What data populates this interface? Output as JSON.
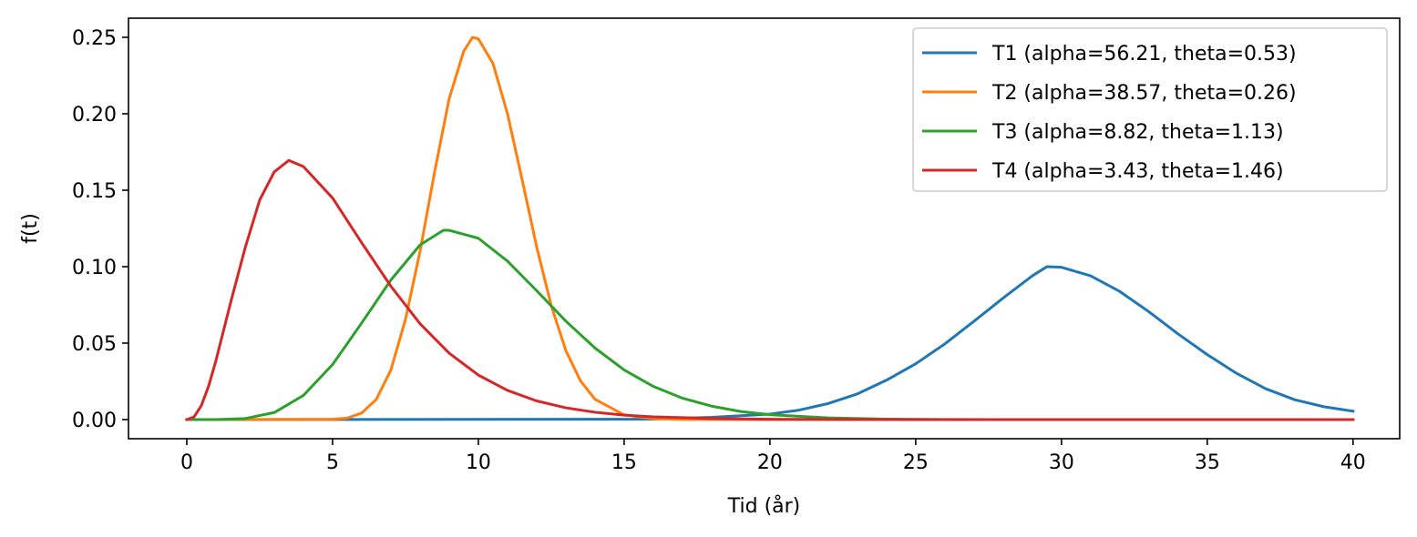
{
  "chart_data": {
    "type": "line",
    "title": "",
    "xlabel": "Tid (år)",
    "ylabel": "f(t)",
    "xlim": [
      -2,
      41.6
    ],
    "ylim": [
      -0.0125,
      0.2625
    ],
    "xticks": [
      0,
      5,
      10,
      15,
      20,
      25,
      30,
      35,
      40
    ],
    "xtick_labels": [
      "0",
      "5",
      "10",
      "15",
      "20",
      "25",
      "30",
      "35",
      "40"
    ],
    "yticks": [
      0.0,
      0.05,
      0.1,
      0.15,
      0.2,
      0.25
    ],
    "ytick_labels": [
      "0.00",
      "0.05",
      "0.10",
      "0.15",
      "0.20",
      "0.25"
    ],
    "grid": false,
    "legend_position": "top-right",
    "x_range": [
      0,
      40
    ],
    "series": [
      {
        "name": "T1 (alpha=56.21, theta=0.53)",
        "color": "#1f77b4",
        "x": [
          0,
          16,
          18,
          20,
          21,
          22,
          23,
          24,
          25,
          26,
          27,
          28,
          29,
          29.5,
          30,
          31,
          32,
          33,
          34,
          35,
          36,
          37,
          38,
          39,
          40
        ],
        "y": [
          0.0,
          0.0003,
          0.0015,
          0.0036,
          0.0062,
          0.0105,
          0.0168,
          0.0258,
          0.0365,
          0.0495,
          0.0643,
          0.0795,
          0.094,
          0.1,
          0.0996,
          0.094,
          0.0838,
          0.0705,
          0.056,
          0.0425,
          0.0303,
          0.0202,
          0.013,
          0.0084,
          0.0055
        ]
      },
      {
        "name": "T2 (alpha=38.57, theta=0.26)",
        "color": "#ff7f0e",
        "x": [
          0,
          5,
          5.5,
          6,
          6.5,
          7,
          7.5,
          8,
          8.5,
          9,
          9.5,
          9.8,
          10,
          10.5,
          11,
          11.5,
          12,
          12.5,
          13,
          13.5,
          14,
          15,
          16,
          17,
          20,
          40
        ],
        "y": [
          0.0,
          0.0002,
          0.001,
          0.0043,
          0.0132,
          0.0325,
          0.0655,
          0.11,
          0.162,
          0.21,
          0.241,
          0.25,
          0.249,
          0.233,
          0.2,
          0.157,
          0.113,
          0.0745,
          0.0452,
          0.0254,
          0.0133,
          0.0031,
          0.0006,
          0.0001,
          0.0,
          0.0
        ]
      },
      {
        "name": "T3 (alpha=8.82, theta=1.13)",
        "color": "#2ca02c",
        "x": [
          0,
          1,
          2,
          3,
          4,
          5,
          6,
          7,
          8,
          8.8,
          9,
          10,
          11,
          12,
          13,
          14,
          15,
          16,
          17,
          18,
          19,
          20,
          22,
          24,
          26,
          28,
          30,
          34,
          40
        ],
        "y": [
          0.0,
          0.0,
          0.0007,
          0.0046,
          0.0158,
          0.036,
          0.0632,
          0.0913,
          0.1142,
          0.1238,
          0.1238,
          0.1186,
          0.1036,
          0.0843,
          0.0644,
          0.0468,
          0.0325,
          0.0217,
          0.014,
          0.0088,
          0.0053,
          0.0032,
          0.0011,
          0.0003,
          0.0001,
          0.0,
          0.0,
          0.0,
          0.0
        ]
      },
      {
        "name": "T4 (alpha=3.43, theta=1.46)",
        "color": "#d62728",
        "x": [
          0,
          0.25,
          0.5,
          0.75,
          1,
          1.5,
          2,
          2.5,
          3,
          3.5,
          4,
          5,
          6,
          7,
          8,
          9,
          10,
          11,
          12,
          13,
          14,
          15,
          16,
          18,
          20,
          25,
          30,
          40
        ],
        "y": [
          0.0,
          0.0018,
          0.0092,
          0.022,
          0.0386,
          0.0763,
          0.1122,
          0.1436,
          0.162,
          0.1695,
          0.1655,
          0.1449,
          0.1156,
          0.0872,
          0.0627,
          0.0434,
          0.0291,
          0.0191,
          0.0122,
          0.0077,
          0.0048,
          0.0029,
          0.0018,
          0.0007,
          0.0002,
          0.0,
          0.0,
          0.0
        ]
      }
    ]
  }
}
